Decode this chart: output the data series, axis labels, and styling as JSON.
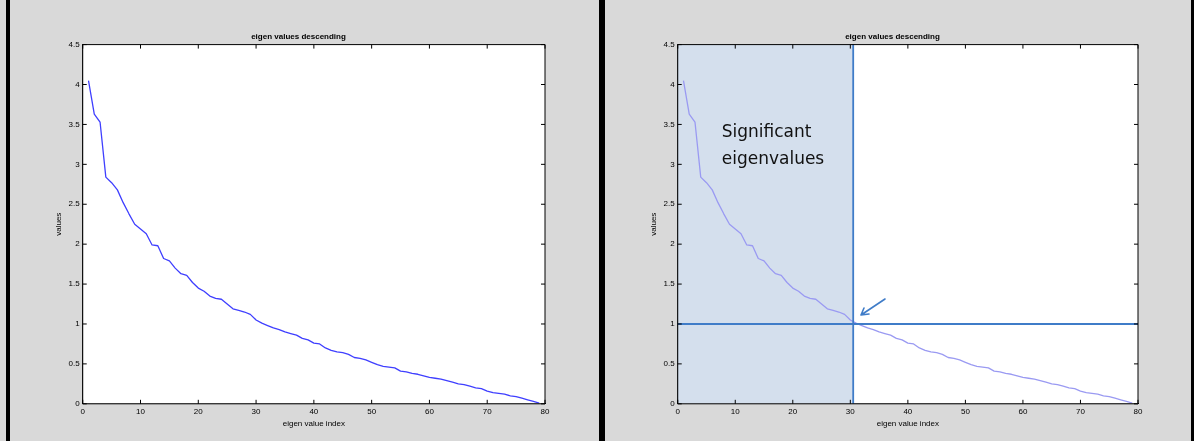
{
  "chart_data": [
    {
      "type": "line",
      "title": "eigen values descending",
      "xlabel": "eigen value index",
      "ylabel": "values",
      "color": "#3f3fff",
      "x": [
        1,
        2,
        3,
        4,
        5,
        6,
        7,
        8,
        9,
        10,
        11,
        12,
        13,
        14,
        15,
        16,
        17,
        18,
        19,
        20,
        21,
        22,
        23,
        24,
        25,
        26,
        27,
        28,
        29,
        30,
        31,
        32,
        33,
        34,
        35,
        36,
        37,
        38,
        39,
        40,
        41,
        42,
        43,
        44,
        45,
        46,
        47,
        48,
        49,
        50,
        51,
        52,
        53,
        54,
        55,
        56,
        57,
        58,
        59,
        60,
        61,
        62,
        63,
        64,
        65,
        66,
        67,
        68,
        69,
        70,
        71,
        72,
        73,
        74,
        75,
        76,
        77,
        78,
        79
      ],
      "values": [
        4.05,
        3.63,
        3.53,
        2.84,
        2.77,
        2.68,
        2.52,
        2.38,
        2.25,
        2.19,
        2.13,
        1.99,
        1.98,
        1.82,
        1.79,
        1.7,
        1.63,
        1.61,
        1.52,
        1.45,
        1.41,
        1.35,
        1.32,
        1.31,
        1.25,
        1.19,
        1.17,
        1.15,
        1.12,
        1.05,
        1.01,
        0.98,
        0.95,
        0.93,
        0.9,
        0.88,
        0.86,
        0.82,
        0.8,
        0.76,
        0.75,
        0.7,
        0.67,
        0.65,
        0.64,
        0.62,
        0.58,
        0.57,
        0.55,
        0.52,
        0.49,
        0.47,
        0.46,
        0.45,
        0.41,
        0.4,
        0.38,
        0.37,
        0.35,
        0.33,
        0.32,
        0.31,
        0.29,
        0.27,
        0.25,
        0.24,
        0.22,
        0.2,
        0.19,
        0.16,
        0.14,
        0.13,
        0.12,
        0.1,
        0.09,
        0.07,
        0.05,
        0.03,
        0.01
      ],
      "xlim": [
        0,
        80
      ],
      "xticks": [
        0,
        10,
        20,
        30,
        40,
        50,
        60,
        70,
        80
      ],
      "ylim": [
        0,
        4.5
      ],
      "yticks": [
        0,
        0.5,
        1,
        1.5,
        2,
        2.5,
        3,
        3.5,
        4,
        4.5
      ],
      "grid": false,
      "legend": false,
      "marker": "none",
      "line_style": "solid"
    },
    {
      "type": "line",
      "title": "eigen values descending",
      "xlabel": "eigen value index",
      "ylabel": "values",
      "color": "#9a9af2",
      "x": [
        1,
        2,
        3,
        4,
        5,
        6,
        7,
        8,
        9,
        10,
        11,
        12,
        13,
        14,
        15,
        16,
        17,
        18,
        19,
        20,
        21,
        22,
        23,
        24,
        25,
        26,
        27,
        28,
        29,
        30,
        31,
        32,
        33,
        34,
        35,
        36,
        37,
        38,
        39,
        40,
        41,
        42,
        43,
        44,
        45,
        46,
        47,
        48,
        49,
        50,
        51,
        52,
        53,
        54,
        55,
        56,
        57,
        58,
        59,
        60,
        61,
        62,
        63,
        64,
        65,
        66,
        67,
        68,
        69,
        70,
        71,
        72,
        73,
        74,
        75,
        76,
        77,
        78,
        79
      ],
      "values": [
        4.05,
        3.63,
        3.53,
        2.84,
        2.77,
        2.68,
        2.52,
        2.38,
        2.25,
        2.19,
        2.13,
        1.99,
        1.98,
        1.82,
        1.79,
        1.7,
        1.63,
        1.61,
        1.52,
        1.45,
        1.41,
        1.35,
        1.32,
        1.31,
        1.25,
        1.19,
        1.17,
        1.15,
        1.12,
        1.05,
        1.01,
        0.98,
        0.95,
        0.93,
        0.9,
        0.88,
        0.86,
        0.82,
        0.8,
        0.76,
        0.75,
        0.7,
        0.67,
        0.65,
        0.64,
        0.62,
        0.58,
        0.57,
        0.55,
        0.52,
        0.49,
        0.47,
        0.46,
        0.45,
        0.41,
        0.4,
        0.38,
        0.37,
        0.35,
        0.33,
        0.32,
        0.31,
        0.29,
        0.27,
        0.25,
        0.24,
        0.22,
        0.2,
        0.19,
        0.16,
        0.14,
        0.13,
        0.12,
        0.1,
        0.09,
        0.07,
        0.05,
        0.03,
        0.01
      ],
      "xlim": [
        0,
        80
      ],
      "xticks": [
        0,
        10,
        20,
        30,
        40,
        50,
        60,
        70,
        80
      ],
      "ylim": [
        0,
        4.5
      ],
      "yticks": [
        0,
        0.5,
        1,
        1.5,
        2,
        2.5,
        3,
        3.5,
        4,
        4.5
      ],
      "grid": false,
      "legend": false,
      "marker": "none",
      "line_style": "solid",
      "bands": [
        {
          "axis": "x",
          "from": 0,
          "to": 30.5,
          "label": "Significant eigenvalues",
          "color": "#d4dfed"
        }
      ],
      "ref_lines": [
        {
          "axis": "y",
          "value": 1,
          "color": "#3f7cc8"
        },
        {
          "axis": "x",
          "value": 30.5,
          "color": "#3f7cc8"
        }
      ]
    }
  ]
}
